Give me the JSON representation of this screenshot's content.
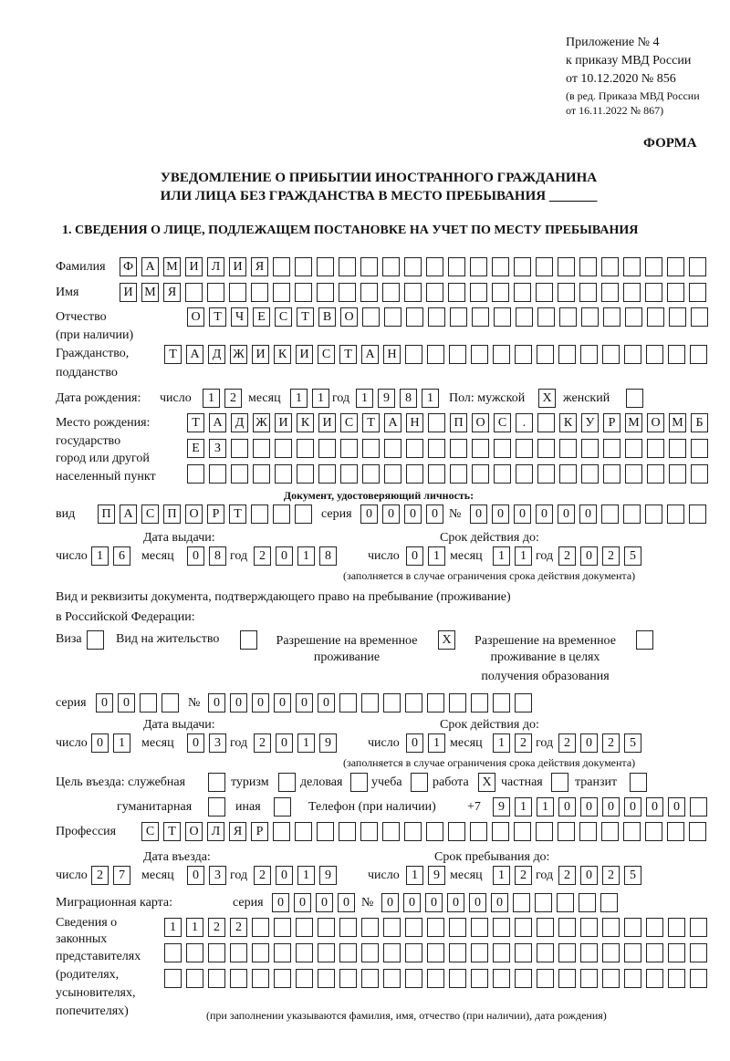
{
  "header": {
    "appendix": "Приложение № 4",
    "order": "к приказу МВД России",
    "order_date": "от 10.12.2020 № 856",
    "edition1": "(в ред. Приказа МВД России",
    "edition2": "от 16.11.2022 № 867)",
    "form_label": "ФОРМА",
    "title1": "УВЕДОМЛЕНИЕ О ПРИБЫТИИ ИНОСТРАННОГО ГРАЖДАНИНА",
    "title2": "ИЛИ ЛИЦА БЕЗ ГРАЖДАНСТВА В МЕСТО ПРЕБЫВАНИЯ _______",
    "section1": "1. СВЕДЕНИЯ О ЛИЦЕ, ПОДЛЕЖАЩЕМ ПОСТАНОВКЕ НА УЧЕТ ПО МЕСТУ ПРЕБЫВАНИЯ"
  },
  "labels": {
    "surname": "Фамилия",
    "name": "Имя",
    "patronymic1": "Отчество",
    "patronymic2": "(при наличии)",
    "citizenship1": "Гражданство,",
    "citizenship2": "подданство",
    "birth_date": "Дата рождения:",
    "day": "число",
    "month": "месяц",
    "year": "год",
    "sex": "Пол: мужской",
    "female": "женский",
    "birthplace1": "Место рождения:",
    "birthplace2": "государство",
    "birthplace3": "город или другой",
    "birthplace4": "населенный пункт",
    "id_doc": "Документ, удостоверяющий личность:",
    "kind": "вид",
    "series": "серия",
    "number": "№",
    "issue_date": "Дата выдачи:",
    "valid_until": "Срок действия до:",
    "valid_note": "(заполняется в случае ограничения срока действия документа)",
    "permit_doc1": "Вид и реквизиты документа, подтверждающего право на пребывание (проживание)",
    "permit_doc2": "в Российской Федерации:",
    "visa": "Виза",
    "residence": "Вид на жительство",
    "temp1": "Разрешение на временное",
    "temp2": "проживание",
    "tempedu1": "Разрешение на временное",
    "tempedu2": "проживание в целях",
    "tempedu3": "получения образования",
    "purpose": "Цель въезда: служебная",
    "tourism": "туризм",
    "business": "деловая",
    "study": "учеба",
    "work": "работа",
    "private": "частная",
    "transit": "транзит",
    "humanitarian": "гуманитарная",
    "other": "иная",
    "phone": "Телефон (при наличии)",
    "phone_prefix": "+7",
    "profession": "Профессия",
    "entry_date": "Дата въезда:",
    "stay_until": "Срок пребывания до:",
    "migration_card": "Миграционная карта:",
    "reps1": "Сведения о",
    "reps2": "законных",
    "reps3": "представителях",
    "reps4": "(родителях,",
    "reps5": "усыновителях,",
    "reps6": "попечителях)",
    "reps_note": "(при заполнении указываются фамилия, имя, отчество (при наличии), дата рождения)"
  },
  "fields": {
    "surname": [
      "Ф",
      "А",
      "М",
      "И",
      "Л",
      "И",
      "Я"
    ],
    "name": [
      "И",
      "М",
      "Я"
    ],
    "patronymic": [
      "О",
      "Т",
      "Ч",
      "Е",
      "С",
      "Т",
      "В",
      "О"
    ],
    "citizenship": [
      "Т",
      "А",
      "Д",
      "Ж",
      "И",
      "К",
      "И",
      "С",
      "Т",
      "А",
      "Н"
    ],
    "birth_day": [
      "1",
      "2"
    ],
    "birth_month": [
      "1",
      "1"
    ],
    "birth_year": [
      "1",
      "9",
      "8",
      "1"
    ],
    "sex_male": [
      "X"
    ],
    "sex_female": [],
    "birthplace_1": [
      "Т",
      "А",
      "Д",
      "Ж",
      "И",
      "К",
      "И",
      "С",
      "Т",
      "А",
      "Н",
      "",
      "П",
      "О",
      "С",
      ".",
      "",
      "К",
      "У",
      "Р",
      "М",
      "О",
      "М",
      "Б"
    ],
    "birthplace_2": [
      "Е",
      "З"
    ],
    "birthplace_3": [],
    "doc_type": [
      "П",
      "А",
      "С",
      "П",
      "О",
      "Р",
      "Т"
    ],
    "doc_series": [
      "0",
      "0",
      "0",
      "0"
    ],
    "doc_number": [
      "0",
      "0",
      "0",
      "0",
      "0",
      "0"
    ],
    "doc_issue_day": [
      "1",
      "6"
    ],
    "doc_issue_month": [
      "0",
      "8"
    ],
    "doc_issue_year": [
      "2",
      "0",
      "1",
      "8"
    ],
    "doc_valid_day": [
      "0",
      "1"
    ],
    "doc_valid_month": [
      "1",
      "1"
    ],
    "doc_valid_year": [
      "2",
      "0",
      "2",
      "5"
    ],
    "permit_visa": [],
    "permit_residence": [],
    "permit_temp": [
      "X"
    ],
    "permit_tempedu": [],
    "permit_series": [
      "0",
      "0"
    ],
    "permit_number": [
      "0",
      "0",
      "0",
      "0",
      "0",
      "0"
    ],
    "permit_issue_day": [
      "0",
      "1"
    ],
    "permit_issue_month": [
      "0",
      "3"
    ],
    "permit_issue_year": [
      "2",
      "0",
      "1",
      "9"
    ],
    "permit_valid_day": [
      "0",
      "1"
    ],
    "permit_valid_month": [
      "1",
      "2"
    ],
    "permit_valid_year": [
      "2",
      "0",
      "2",
      "5"
    ],
    "purpose_official": [],
    "purpose_tourism": [],
    "purpose_business": [],
    "purpose_study": [],
    "purpose_work": [
      "X"
    ],
    "purpose_private": [],
    "purpose_transit": [],
    "purpose_humanitarian": [],
    "purpose_other": [],
    "phone": [
      "9",
      "1",
      "1",
      "0",
      "0",
      "0",
      "0",
      "0",
      "0"
    ],
    "profession": [
      "С",
      "Т",
      "О",
      "Л",
      "Я",
      "Р"
    ],
    "entry_day": [
      "2",
      "7"
    ],
    "entry_month": [
      "0",
      "3"
    ],
    "entry_year": [
      "2",
      "0",
      "1",
      "9"
    ],
    "stay_day": [
      "1",
      "9"
    ],
    "stay_month": [
      "1",
      "2"
    ],
    "stay_year": [
      "2",
      "0",
      "2",
      "5"
    ],
    "mig_series": [
      "0",
      "0",
      "0",
      "0"
    ],
    "mig_number": [
      "0",
      "0",
      "0",
      "0",
      "0",
      "0"
    ],
    "reps_1": [
      "1",
      "1",
      "2",
      "2"
    ],
    "reps_2": [],
    "reps_3": []
  }
}
